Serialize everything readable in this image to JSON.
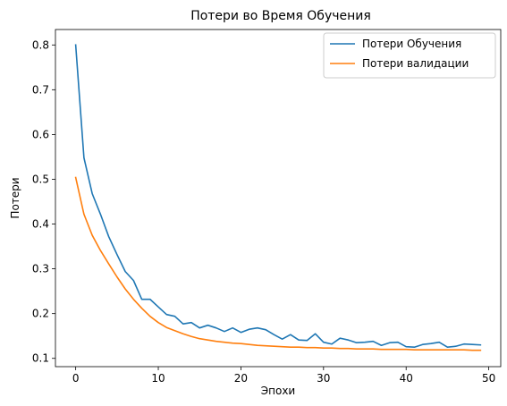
{
  "chart_data": {
    "type": "line",
    "title": "Потери во Время Обучения",
    "xlabel": "Эпохи",
    "ylabel": "Потери",
    "xlim": [
      -2.45,
      51.45
    ],
    "ylim": [
      0.0815,
      0.8345
    ],
    "xticks": [
      "0",
      "10",
      "20",
      "30",
      "40",
      "50"
    ],
    "yticks": [
      "0.1",
      "0.2",
      "0.3",
      "0.4",
      "0.5",
      "0.6",
      "0.7",
      "0.8"
    ],
    "grid": false,
    "legend_position": "top-right",
    "x": [
      0,
      1,
      2,
      3,
      4,
      5,
      6,
      7,
      8,
      9,
      10,
      11,
      12,
      13,
      14,
      15,
      16,
      17,
      18,
      19,
      20,
      21,
      22,
      23,
      24,
      25,
      26,
      27,
      28,
      29,
      30,
      31,
      32,
      33,
      34,
      35,
      36,
      37,
      38,
      39,
      40,
      41,
      42,
      43,
      44,
      45,
      46,
      47,
      48,
      49
    ],
    "series": [
      {
        "name": "Потери Обучения",
        "color": "#1f77b4",
        "values": [
          0.8,
          0.548,
          0.468,
          0.422,
          0.372,
          0.332,
          0.294,
          0.274,
          0.232,
          0.232,
          0.215,
          0.198,
          0.194,
          0.177,
          0.18,
          0.168,
          0.174,
          0.168,
          0.16,
          0.168,
          0.158,
          0.165,
          0.168,
          0.164,
          0.153,
          0.143,
          0.153,
          0.141,
          0.14,
          0.155,
          0.136,
          0.132,
          0.145,
          0.141,
          0.135,
          0.136,
          0.138,
          0.129,
          0.135,
          0.136,
          0.126,
          0.125,
          0.131,
          0.133,
          0.136,
          0.125,
          0.127,
          0.132,
          0.131,
          0.13
        ]
      },
      {
        "name": "Потери валидации",
        "color": "#ff7f0e",
        "values": [
          0.504,
          0.422,
          0.375,
          0.341,
          0.311,
          0.282,
          0.255,
          0.232,
          0.212,
          0.194,
          0.18,
          0.169,
          0.162,
          0.155,
          0.149,
          0.144,
          0.141,
          0.138,
          0.136,
          0.134,
          0.133,
          0.131,
          0.129,
          0.128,
          0.127,
          0.126,
          0.125,
          0.125,
          0.124,
          0.124,
          0.123,
          0.123,
          0.122,
          0.122,
          0.121,
          0.121,
          0.121,
          0.12,
          0.12,
          0.12,
          0.12,
          0.119,
          0.119,
          0.119,
          0.119,
          0.119,
          0.119,
          0.119,
          0.118,
          0.118
        ]
      }
    ]
  }
}
